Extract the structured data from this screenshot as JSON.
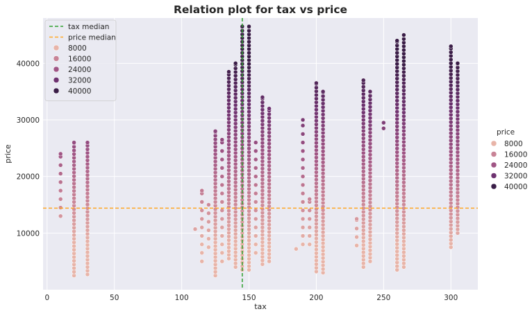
{
  "chart_data": {
    "type": "scatter",
    "title": "Relation plot for tax vs price",
    "xlabel": "tax",
    "ylabel": "price",
    "xlim": [
      -3,
      320
    ],
    "ylim": [
      0,
      48000
    ],
    "xticks": [
      0,
      50,
      100,
      150,
      200,
      250,
      300
    ],
    "yticks": [
      10000,
      20000,
      30000,
      40000
    ],
    "grid": true,
    "background": "#eaeaf2",
    "hue": "price",
    "hue_colors": {
      "8000": "#e8b4a8",
      "16000": "#c88396",
      "24000": "#a05585",
      "32000": "#6e3270",
      "40000": "#3a1d47"
    },
    "reference_lines": [
      {
        "name": "tax median",
        "orientation": "vertical",
        "value": 145,
        "color": "#2ca02c",
        "style": "dashed"
      },
      {
        "name": "price median",
        "orientation": "horizontal",
        "value": 14400,
        "color": "#ffa726",
        "style": "dashed"
      }
    ],
    "inner_legend": {
      "placement": "top-left",
      "line_entries": [
        "tax median",
        "price median"
      ],
      "hue_entries": [
        "8000",
        "16000",
        "24000",
        "32000",
        "40000"
      ]
    },
    "outer_legend": {
      "placement": "right",
      "title": "price",
      "hue_entries": [
        "8000",
        "16000",
        "24000",
        "32000",
        "40000"
      ]
    },
    "columns": [
      {
        "x": 10,
        "ymin": 13000,
        "ymax": 24000,
        "dense": false
      },
      {
        "x": 20,
        "ymin": 2500,
        "ymax": 26000,
        "dense": true
      },
      {
        "x": 30,
        "ymin": 2700,
        "ymax": 26000,
        "dense": true
      },
      {
        "x": 110,
        "ymin": 10700,
        "ymax": 10700,
        "dense": false
      },
      {
        "x": 115,
        "ymin": 5000,
        "ymax": 17500,
        "dense": false
      },
      {
        "x": 120,
        "ymin": 7500,
        "ymax": 15000,
        "dense": false
      },
      {
        "x": 125,
        "ymin": 2500,
        "ymax": 28000,
        "dense": true
      },
      {
        "x": 130,
        "ymin": 5000,
        "ymax": 26500,
        "dense": false
      },
      {
        "x": 135,
        "ymin": 5500,
        "ymax": 38500,
        "dense": true
      },
      {
        "x": 140,
        "ymin": 4000,
        "ymax": 40000,
        "dense": true
      },
      {
        "x": 145,
        "ymin": 3500,
        "ymax": 46500,
        "dense": true
      },
      {
        "x": 150,
        "ymin": 3500,
        "ymax": 46500,
        "dense": true
      },
      {
        "x": 155,
        "ymin": 6500,
        "ymax": 26000,
        "dense": false
      },
      {
        "x": 160,
        "ymin": 4500,
        "ymax": 34000,
        "dense": true
      },
      {
        "x": 165,
        "ymin": 5000,
        "ymax": 32000,
        "dense": true
      },
      {
        "x": 185,
        "ymin": 7200,
        "ymax": 7200,
        "dense": false
      },
      {
        "x": 190,
        "ymin": 8000,
        "ymax": 30000,
        "dense": false
      },
      {
        "x": 195,
        "ymin": 8000,
        "ymax": 16000,
        "dense": false
      },
      {
        "x": 200,
        "ymin": 3200,
        "ymax": 36500,
        "dense": true
      },
      {
        "x": 205,
        "ymin": 3000,
        "ymax": 35000,
        "dense": true
      },
      {
        "x": 230,
        "ymin": 7800,
        "ymax": 12500,
        "dense": false
      },
      {
        "x": 235,
        "ymin": 4000,
        "ymax": 37000,
        "dense": true
      },
      {
        "x": 240,
        "ymin": 5000,
        "ymax": 35000,
        "dense": true
      },
      {
        "x": 250,
        "ymin": 28500,
        "ymax": 29500,
        "dense": false
      },
      {
        "x": 260,
        "ymin": 3500,
        "ymax": 44000,
        "dense": true
      },
      {
        "x": 265,
        "ymin": 4000,
        "ymax": 45000,
        "dense": true
      },
      {
        "x": 300,
        "ymin": 7500,
        "ymax": 43000,
        "dense": true
      },
      {
        "x": 305,
        "ymin": 10000,
        "ymax": 40000,
        "dense": true
      }
    ]
  }
}
